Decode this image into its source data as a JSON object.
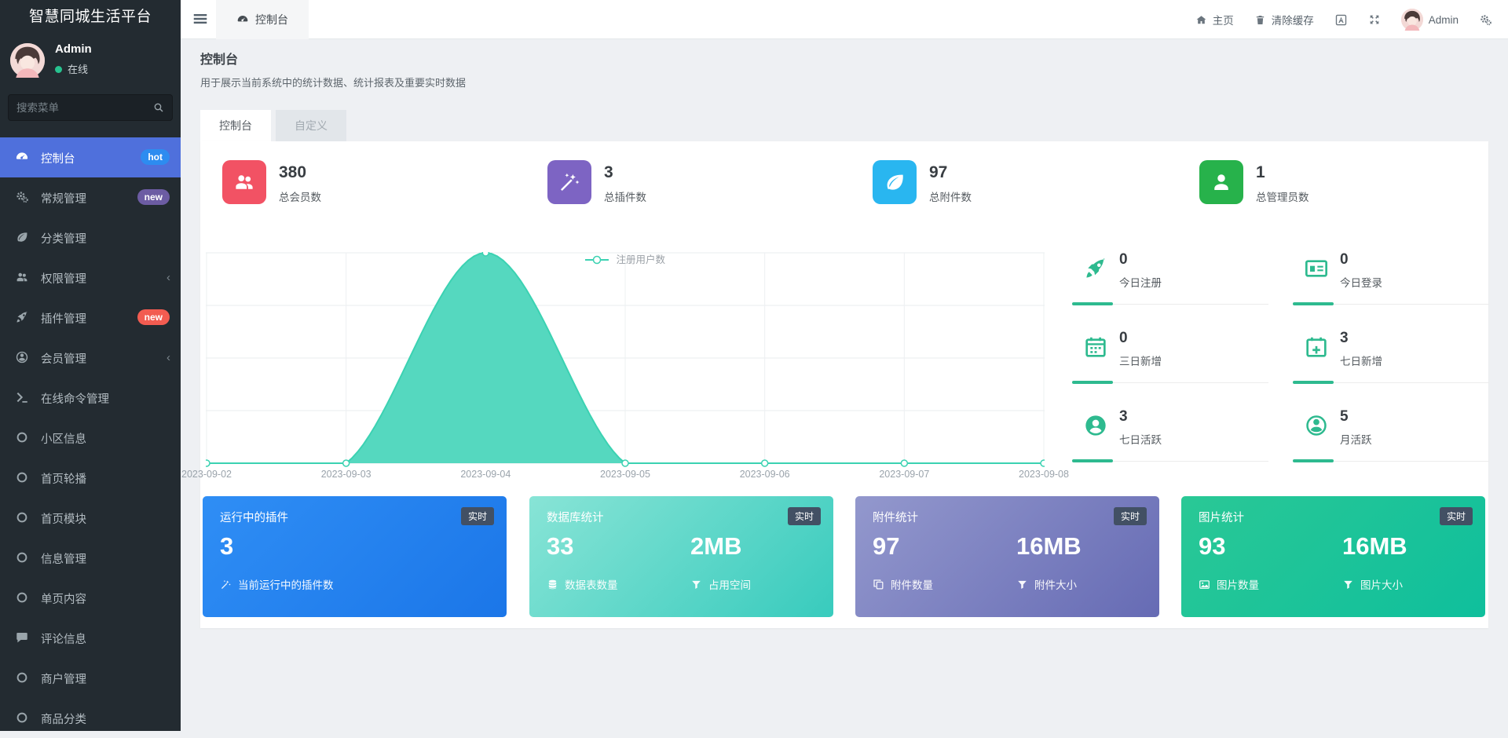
{
  "app_title": "智慧同城生活平台",
  "sidebar": {
    "logo": "智慧同城生活平台",
    "user": {
      "name": "Admin",
      "status": "在线",
      "status_color": "#27c28f"
    },
    "search": {
      "placeholder": "搜索菜单"
    },
    "active_bg": "#4f70dc",
    "items": [
      {
        "label": "控制台",
        "icon": "gauge-icon",
        "badge": {
          "text": "hot",
          "color": "#2d8cf0"
        },
        "active": true
      },
      {
        "label": "常规管理",
        "icon": "gears-icon",
        "badge": {
          "text": "new",
          "color": "#6c5ca3"
        }
      },
      {
        "label": "分类管理",
        "icon": "leaf-icon"
      },
      {
        "label": "权限管理",
        "icon": "users-icon",
        "chevron": "‹"
      },
      {
        "label": "插件管理",
        "icon": "rocket-icon",
        "badge": {
          "text": "new",
          "color": "#f25c51"
        }
      },
      {
        "label": "会员管理",
        "icon": "user-circle-icon",
        "chevron": "‹"
      },
      {
        "label": "在线命令管理",
        "icon": "terminal-icon"
      },
      {
        "label": "小区信息",
        "icon": "circle-icon"
      },
      {
        "label": "首页轮播",
        "icon": "circle-icon"
      },
      {
        "label": "首页模块",
        "icon": "circle-icon"
      },
      {
        "label": "信息管理",
        "icon": "circle-icon"
      },
      {
        "label": "单页内容",
        "icon": "circle-icon"
      },
      {
        "label": "评论信息",
        "icon": "comment-icon"
      },
      {
        "label": "商户管理",
        "icon": "circle-icon"
      },
      {
        "label": "商品分类",
        "icon": "circle-icon"
      }
    ]
  },
  "topbar": {
    "tab": {
      "label": "控制台",
      "icon": "gauge-icon"
    },
    "home": {
      "label": "主页",
      "icon": "home-icon"
    },
    "clear_cache": {
      "label": "清除缓存",
      "icon": "trash-icon"
    },
    "language_icon": "language-icon",
    "expand_icon": "expand-icon",
    "user": {
      "name": "Admin"
    },
    "settings_icon": "cogs-icon"
  },
  "page": {
    "title": "控制台",
    "subtitle": "用于展示当前系统中的统计数据、统计报表及重要实时数据",
    "tabs": [
      {
        "label": "控制台",
        "active": true
      },
      {
        "label": "自定义",
        "active": false
      }
    ]
  },
  "stats": [
    {
      "icon": "users-icon",
      "value": "380",
      "label": "总会员数",
      "color": "#f25264"
    },
    {
      "icon": "wand-icon",
      "value": "3",
      "label": "总插件数",
      "color": "#7d64c3"
    },
    {
      "icon": "leaf-icon",
      "value": "97",
      "label": "总附件数",
      "color": "#29b6f0"
    },
    {
      "icon": "user-icon",
      "value": "1",
      "label": "总管理员数",
      "color": "#27b24b"
    }
  ],
  "mini_stats": {
    "accent": "#2eba8f",
    "items": [
      {
        "icon": "rocket-icon",
        "value": "0",
        "label": "今日注册"
      },
      {
        "icon": "id-card-icon",
        "value": "0",
        "label": "今日登录"
      },
      {
        "icon": "calendar-icon",
        "value": "0",
        "label": "三日新增"
      },
      {
        "icon": "calendar-plus-icon",
        "value": "3",
        "label": "七日新增"
      },
      {
        "icon": "user-circle-solid-icon",
        "value": "3",
        "label": "七日活跃"
      },
      {
        "icon": "user-circle-icon",
        "value": "5",
        "label": "月活跃"
      }
    ]
  },
  "bottom_cards": [
    {
      "title": "运行中的插件",
      "badge": "实时",
      "badge_bg": "#425064",
      "value": "3",
      "foot_icon": "wand-icon",
      "foot_label": "当前运行中的插件数",
      "gradient": [
        "#2f8ef5",
        "#1b76e8"
      ]
    },
    {
      "title": "数据库统计",
      "badge": "实时",
      "badge_bg": "#425064",
      "left": {
        "value": "33",
        "icon": "database-icon",
        "label": "数据表数量"
      },
      "right": {
        "value": "2MB",
        "icon": "filter-icon",
        "label": "占用空间"
      },
      "gradient": [
        "#88e4d6",
        "#38cbbd"
      ]
    },
    {
      "title": "附件统计",
      "badge": "实时",
      "badge_bg": "#425064",
      "left": {
        "value": "97",
        "icon": "copy-icon",
        "label": "附件数量"
      },
      "right": {
        "value": "16MB",
        "icon": "filter-icon",
        "label": "附件大小"
      },
      "gradient": [
        "#9398cd",
        "#666bb4"
      ]
    },
    {
      "title": "图片统计",
      "badge": "实时",
      "badge_bg": "#425064",
      "left": {
        "value": "93",
        "icon": "image-icon",
        "label": "图片数量"
      },
      "right": {
        "value": "16MB",
        "icon": "filter-icon",
        "label": "图片大小"
      },
      "gradient": [
        "#2ac896",
        "#0fbf9c"
      ]
    }
  ],
  "chart_data": {
    "type": "area",
    "series": [
      {
        "name": "注册用户数",
        "values": [
          0,
          0,
          380,
          0,
          0,
          0,
          0
        ]
      }
    ],
    "x": [
      "2023-09-02",
      "2023-09-03",
      "2023-09-04",
      "2023-09-05",
      "2023-09-06",
      "2023-09-07",
      "2023-09-08"
    ],
    "ylim": [
      0,
      380
    ],
    "grid": true,
    "legend_position": "top-center",
    "smooth": true,
    "color": "#55d8bf",
    "line_color": "#3bd2b2",
    "marker": "hollow-circle"
  }
}
